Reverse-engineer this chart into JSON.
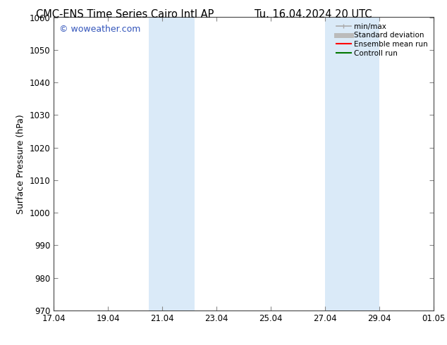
{
  "title_left": "CMC-ENS Time Series Cairo Intl AP",
  "title_right": "Tu. 16.04.2024 20 UTC",
  "ylabel": "Surface Pressure (hPa)",
  "ylim": [
    970,
    1060
  ],
  "yticks": [
    970,
    980,
    990,
    1000,
    1010,
    1020,
    1030,
    1040,
    1050,
    1060
  ],
  "xtick_labels": [
    "17.04",
    "19.04",
    "21.04",
    "23.04",
    "25.04",
    "27.04",
    "29.04",
    "01.05"
  ],
  "xtick_positions": [
    0,
    2,
    4,
    6,
    8,
    10,
    12,
    14
  ],
  "shaded_regions": [
    {
      "x_start": 3.5,
      "x_end": 5.2
    },
    {
      "x_start": 10.0,
      "x_end": 12.0
    }
  ],
  "shaded_color": "#daeaf8",
  "watermark": "© woweather.com",
  "watermark_color": "#3355bb",
  "background_color": "#ffffff",
  "axis_color": "#888888",
  "legend_items": [
    {
      "label": "min/max",
      "color": "#aaaaaa",
      "linewidth": 1.2
    },
    {
      "label": "Standard deviation",
      "color": "#bbbbbb",
      "linewidth": 5
    },
    {
      "label": "Ensemble mean run",
      "color": "#ff0000",
      "linewidth": 1.5
    },
    {
      "label": "Controll run",
      "color": "#007700",
      "linewidth": 1.5
    }
  ],
  "title_fontsize": 10.5,
  "tick_fontsize": 8.5,
  "ylabel_fontsize": 9,
  "watermark_fontsize": 9,
  "legend_fontsize": 7.5
}
